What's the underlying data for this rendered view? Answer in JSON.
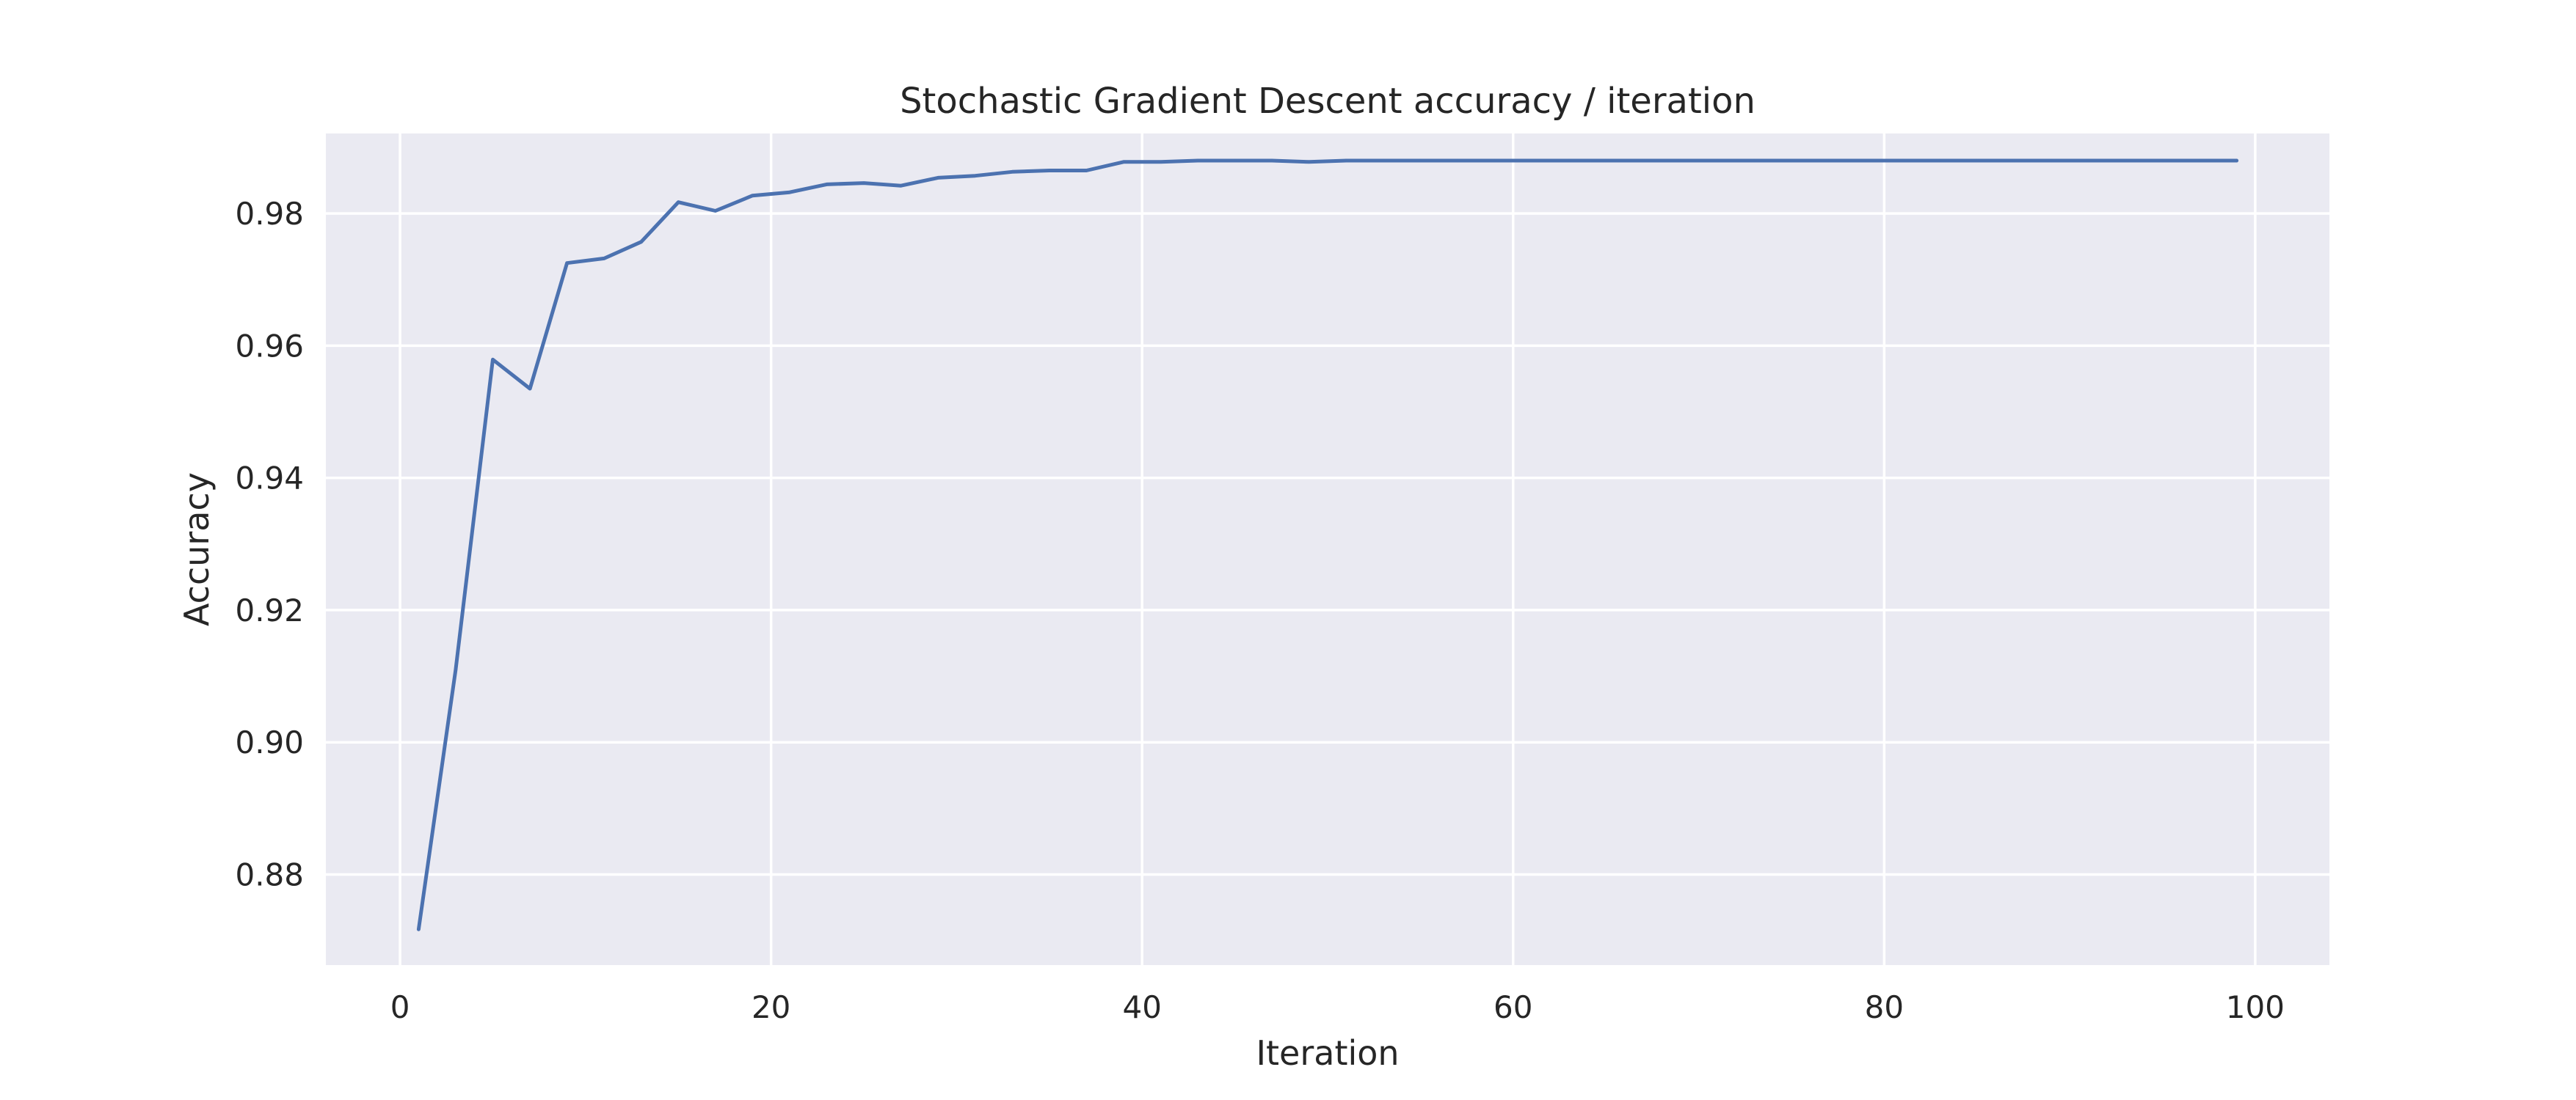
{
  "chart_data": {
    "type": "line",
    "title": "Stochastic Gradient Descent accuracy / iteration",
    "xlabel": "Iteration",
    "ylabel": "Accuracy",
    "xlim": [
      -4,
      104
    ],
    "ylim": [
      0.8663,
      0.9921
    ],
    "xticks": [
      0,
      20,
      40,
      60,
      80,
      100
    ],
    "yticks": [
      0.88,
      0.9,
      0.92,
      0.94,
      0.96,
      0.98
    ],
    "xtick_labels": [
      "0",
      "20",
      "40",
      "60",
      "80",
      "100"
    ],
    "ytick_labels": [
      "0.88",
      "0.90",
      "0.92",
      "0.94",
      "0.96",
      "0.98"
    ],
    "grid": true,
    "series": [
      {
        "color": "#4c72b0",
        "x": [
          1,
          3,
          5,
          7,
          9,
          11,
          13,
          15,
          17,
          19,
          21,
          23,
          25,
          27,
          29,
          31,
          33,
          35,
          37,
          39,
          41,
          43,
          45,
          47,
          49,
          51,
          53,
          55,
          57,
          59,
          61,
          63,
          65,
          67,
          69,
          71,
          73,
          75,
          77,
          79,
          81,
          83,
          85,
          87,
          89,
          91,
          93,
          95,
          97,
          99
        ],
        "y": [
          0.8717,
          0.911,
          0.9579,
          0.9535,
          0.9725,
          0.9732,
          0.9757,
          0.9817,
          0.9804,
          0.9827,
          0.9832,
          0.9844,
          0.9846,
          0.9842,
          0.9854,
          0.9857,
          0.9863,
          0.9865,
          0.9865,
          0.9878,
          0.9878,
          0.988,
          0.988,
          0.988,
          0.9878,
          0.988,
          0.988,
          0.988,
          0.988,
          0.988,
          0.988,
          0.988,
          0.988,
          0.988,
          0.988,
          0.988,
          0.988,
          0.988,
          0.988,
          0.988,
          0.988,
          0.988,
          0.988,
          0.988,
          0.988,
          0.988,
          0.988,
          0.988,
          0.988,
          0.988
        ]
      }
    ]
  }
}
